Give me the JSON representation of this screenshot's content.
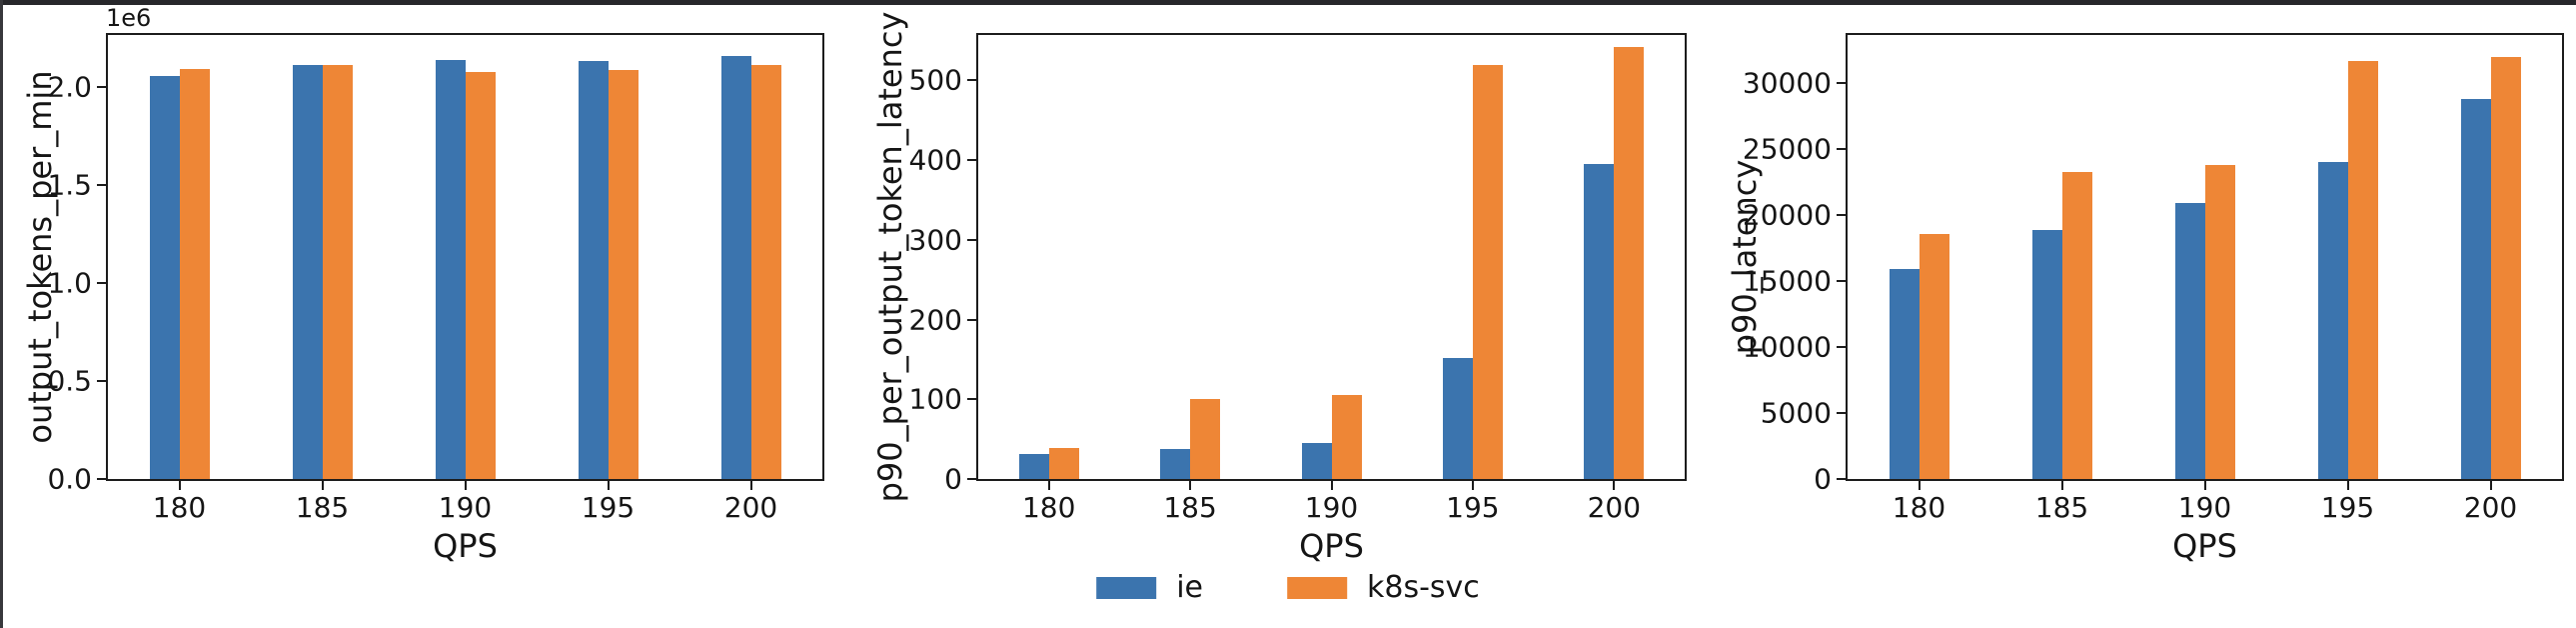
{
  "figure": {
    "background": "#ffffff",
    "window_border_top_color": "#27272b",
    "window_border_left_color": "#38383c",
    "spine_color": "#1c1c1c",
    "text_color": "#151515"
  },
  "palette": {
    "ie": "#3b74ae",
    "k8s-svc": "#ee8636"
  },
  "legend": {
    "position": "lower center",
    "entries": [
      {
        "label": "ie",
        "color": "#3b74ae"
      },
      {
        "label": "k8s-svc",
        "color": "#ee8636"
      }
    ]
  },
  "chart_data": [
    {
      "type": "bar",
      "title": "",
      "ylabel": "output_tokens_per_min",
      "xlabel": "QPS",
      "offset_text": "1e6",
      "categories": [
        "180",
        "185",
        "190",
        "195",
        "200"
      ],
      "series": [
        {
          "name": "ie",
          "color": "#3b74ae",
          "values": [
            2056000,
            2111000,
            2141000,
            2131000,
            2157000
          ]
        },
        {
          "name": "k8s-svc",
          "color": "#ee8636",
          "values": [
            2091000,
            2113000,
            2077000,
            2089000,
            2114000
          ]
        }
      ],
      "yticks": [
        {
          "value": 0,
          "label": "0.0"
        },
        {
          "value": 500000,
          "label": "0.5"
        },
        {
          "value": 1000000,
          "label": "1.0"
        },
        {
          "value": 1500000,
          "label": "1.5"
        },
        {
          "value": 2000000,
          "label": "2.0"
        }
      ],
      "ylim": [
        0,
        2266000
      ],
      "grid": false
    },
    {
      "type": "bar",
      "title": "",
      "ylabel": "p90_per_output_token_latency",
      "xlabel": "QPS",
      "offset_text": "",
      "categories": [
        "180",
        "185",
        "190",
        "195",
        "200"
      ],
      "series": [
        {
          "name": "ie",
          "color": "#3b74ae",
          "values": [
            32,
            38,
            45,
            152,
            395
          ]
        },
        {
          "name": "k8s-svc",
          "color": "#ee8636",
          "values": [
            39,
            100,
            105,
            519,
            542
          ]
        }
      ],
      "yticks": [
        {
          "value": 0,
          "label": "0"
        },
        {
          "value": 100,
          "label": "100"
        },
        {
          "value": 200,
          "label": "200"
        },
        {
          "value": 300,
          "label": "300"
        },
        {
          "value": 400,
          "label": "400"
        },
        {
          "value": 500,
          "label": "500"
        }
      ],
      "ylim": [
        0,
        557
      ],
      "grid": false
    },
    {
      "type": "bar",
      "title": "",
      "ylabel": "p90_latency",
      "xlabel": "QPS",
      "offset_text": "",
      "categories": [
        "180",
        "185",
        "190",
        "195",
        "200"
      ],
      "series": [
        {
          "name": "ie",
          "color": "#3b74ae",
          "values": [
            15900,
            18850,
            20900,
            24000,
            28750
          ]
        },
        {
          "name": "k8s-svc",
          "color": "#ee8636",
          "values": [
            18550,
            23250,
            23750,
            31650,
            31930
          ]
        }
      ],
      "yticks": [
        {
          "value": 0,
          "label": "0"
        },
        {
          "value": 5000,
          "label": "5000"
        },
        {
          "value": 10000,
          "label": "10000"
        },
        {
          "value": 15000,
          "label": "15000"
        },
        {
          "value": 20000,
          "label": "20000"
        },
        {
          "value": 25000,
          "label": "25000"
        },
        {
          "value": 30000,
          "label": "30000"
        }
      ],
      "ylim": [
        0,
        33600
      ],
      "grid": false
    }
  ]
}
